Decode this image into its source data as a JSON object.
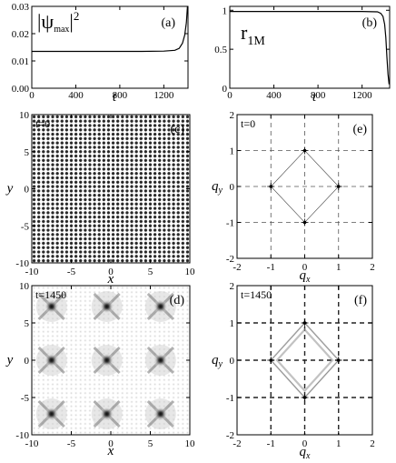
{
  "colors": {
    "axis": "#000000",
    "curve": "#000000",
    "grid": "#555555",
    "field": "#3a3a3a"
  },
  "chart_data": [
    {
      "panel": "(a)",
      "type": "line",
      "ylabel_math": "|ψmax|2",
      "ylabel_parts": [
        "|ψ",
        "max",
        "|",
        "2"
      ],
      "xlabel": "t",
      "xlim": [
        0,
        1420
      ],
      "ylim": [
        0,
        0.03
      ],
      "xticks": [
        0,
        400,
        800,
        1200
      ],
      "xtick_labels": [
        "0",
        "400",
        "800",
        "1200"
      ],
      "yticks": [
        0,
        0.01,
        0.02,
        0.03
      ],
      "ytick_labels": [
        "0.00",
        "0.01",
        "0.02",
        "0.03"
      ],
      "x": [
        0,
        200,
        400,
        600,
        800,
        1000,
        1200,
        1300,
        1340,
        1370,
        1390,
        1405,
        1415
      ],
      "y": [
        0.0135,
        0.0135,
        0.0135,
        0.0135,
        0.0135,
        0.0135,
        0.0136,
        0.0139,
        0.0146,
        0.0165,
        0.0195,
        0.024,
        0.03
      ]
    },
    {
      "panel": "(b)",
      "type": "line",
      "ylabel_parts": [
        "r",
        "1M"
      ],
      "xlabel": "t",
      "xlim": [
        0,
        1450
      ],
      "ylim": [
        0,
        1.05
      ],
      "xticks": [
        0,
        400,
        800,
        1200
      ],
      "xtick_labels": [
        "0",
        "400",
        "800",
        "1200"
      ],
      "yticks": [
        0,
        0.5,
        1
      ],
      "ytick_labels": [
        "0",
        "0.5",
        "1"
      ],
      "x": [
        0,
        200,
        400,
        600,
        800,
        1000,
        1200,
        1340,
        1370,
        1390,
        1405,
        1415,
        1425,
        1435,
        1445
      ],
      "y": [
        0.985,
        0.985,
        0.985,
        0.985,
        0.985,
        0.985,
        0.985,
        0.98,
        0.96,
        0.92,
        0.82,
        0.65,
        0.4,
        0.18,
        0.05
      ]
    },
    {
      "panel": "(c)",
      "type": "heatmap",
      "time_label": "t=0",
      "xlabel": "x",
      "ylabel": "y",
      "xlim": [
        -10,
        10
      ],
      "ylim": [
        -10,
        10
      ],
      "ticks": [
        -10,
        -5,
        0,
        5,
        10
      ],
      "tick_labels": [
        "-10",
        "-5",
        "0",
        "5",
        "10"
      ],
      "pattern": "uniform square lattice",
      "lattice_cells": 34
    },
    {
      "panel": "(d)",
      "type": "heatmap",
      "time_label": "t=1450",
      "xlabel": "x",
      "ylabel": "y",
      "xlim": [
        -10,
        10
      ],
      "ylim": [
        -10,
        10
      ],
      "ticks": [
        -10,
        -5,
        0,
        5,
        10
      ],
      "tick_labels": [
        "-10",
        "-5",
        "0",
        "5",
        "10"
      ],
      "peaks": [
        {
          "x": -7.5,
          "y": 7.2
        },
        {
          "x": -0.5,
          "y": 7.2
        },
        {
          "x": 6.3,
          "y": 7.2
        },
        {
          "x": -7.5,
          "y": 0.0
        },
        {
          "x": -0.5,
          "y": 0.0
        },
        {
          "x": 6.3,
          "y": 0.0
        },
        {
          "x": -7.5,
          "y": -7.2
        },
        {
          "x": -0.5,
          "y": -7.2
        },
        {
          "x": 6.3,
          "y": -7.2
        }
      ]
    },
    {
      "panel": "(e)",
      "type": "scatter",
      "time_label": "t=0",
      "xlabel": "q_x",
      "ylabel": "q_y",
      "xlim": [
        -2,
        2
      ],
      "ylim": [
        -2,
        2
      ],
      "ticks": [
        -2,
        -1,
        0,
        1,
        2
      ],
      "tick_labels": [
        "-2",
        "-1",
        "0",
        "1",
        "2"
      ],
      "points": [
        [
          1,
          0
        ],
        [
          0,
          1
        ],
        [
          -1,
          0
        ],
        [
          0,
          -1
        ]
      ],
      "grid": true
    },
    {
      "panel": "(f)",
      "type": "scatter",
      "time_label": "t=1450",
      "xlabel": "q_x",
      "ylabel": "q_y",
      "xlim": [
        -2,
        2
      ],
      "ylim": [
        -2,
        2
      ],
      "ticks": [
        -2,
        -1,
        0,
        1,
        2
      ],
      "tick_labels": [
        "-2",
        "-1",
        "0",
        "1",
        "2"
      ],
      "points": [
        [
          1,
          0
        ],
        [
          0,
          1
        ],
        [
          -1,
          0
        ],
        [
          0,
          -1
        ]
      ],
      "grid": true
    }
  ]
}
